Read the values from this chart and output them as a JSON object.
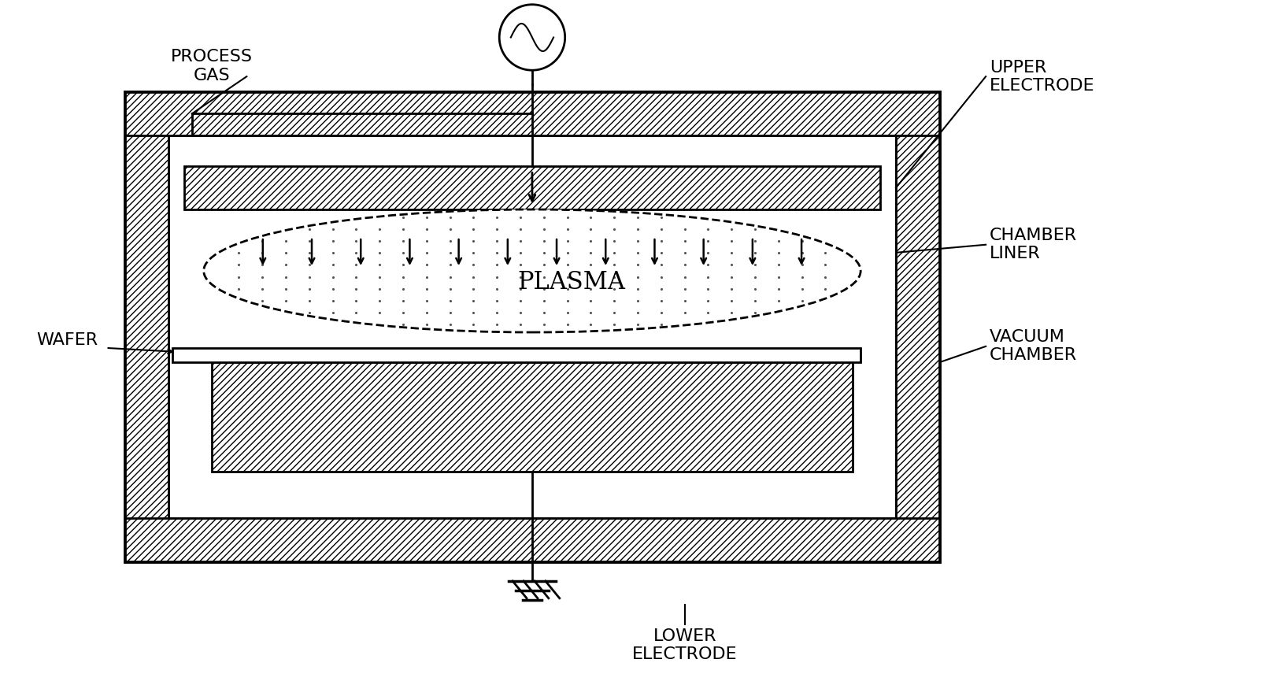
{
  "bg_color": "#ffffff",
  "line_color": "#000000",
  "labels": {
    "process_gas": "PROCESS\nGAS",
    "upper_electrode": "UPPER\nELECTRODE",
    "chamber_liner": "CHAMBER\nLINER",
    "vacuum_chamber": "VACUUM\nCHAMBER",
    "wafer": "WAFER",
    "plasma": "PLASMA",
    "lower_electrode": "LOWER\nELECTRODE"
  },
  "figsize": [
    16.36,
    8.56
  ],
  "dpi": 100
}
